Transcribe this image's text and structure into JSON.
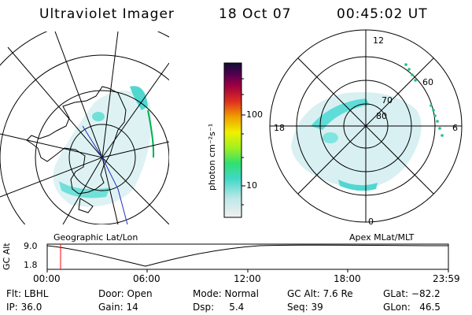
{
  "header": {
    "title": "Ultraviolet Imager",
    "date": "18 Oct 07",
    "time": "00:45:02 UT"
  },
  "left_panel": {
    "label": "Geographic Lat/Lon"
  },
  "right_panel": {
    "label": "Apex MLat/MLT",
    "lat_labels": [
      "80",
      "70",
      "60"
    ],
    "mlt_labels": [
      "12",
      "18",
      "6",
      "0"
    ]
  },
  "colorbar": {
    "unit_label": "photon cm⁻²s⁻¹",
    "ticks": [
      "100",
      "10"
    ]
  },
  "altitude_plot": {
    "ylabel": "GC Alt",
    "y_ticks": [
      "9.0",
      "1.8"
    ],
    "x_ticks": [
      "00:00",
      "06:00",
      "12:00",
      "18:00",
      "23:59"
    ]
  },
  "info_row1": {
    "flt": "Flt: LBHL",
    "door": "Door: Open",
    "mode": "Mode: Normal",
    "gc_alt": "GC Alt: 7.6 Re",
    "glat": "GLat: −82.2"
  },
  "info_row2": {
    "ip": "IP: 36.0",
    "gain": "Gain: 14",
    "dsp": "Dsp:     5.4",
    "seq": "Seq: 39",
    "glon": "GLon:   46.5"
  },
  "colors": {
    "current_time_marker": "#ff0000",
    "aurora_cyan": "#40e0d0",
    "aurora_light": "#c8eef0",
    "track": "#00c060"
  }
}
